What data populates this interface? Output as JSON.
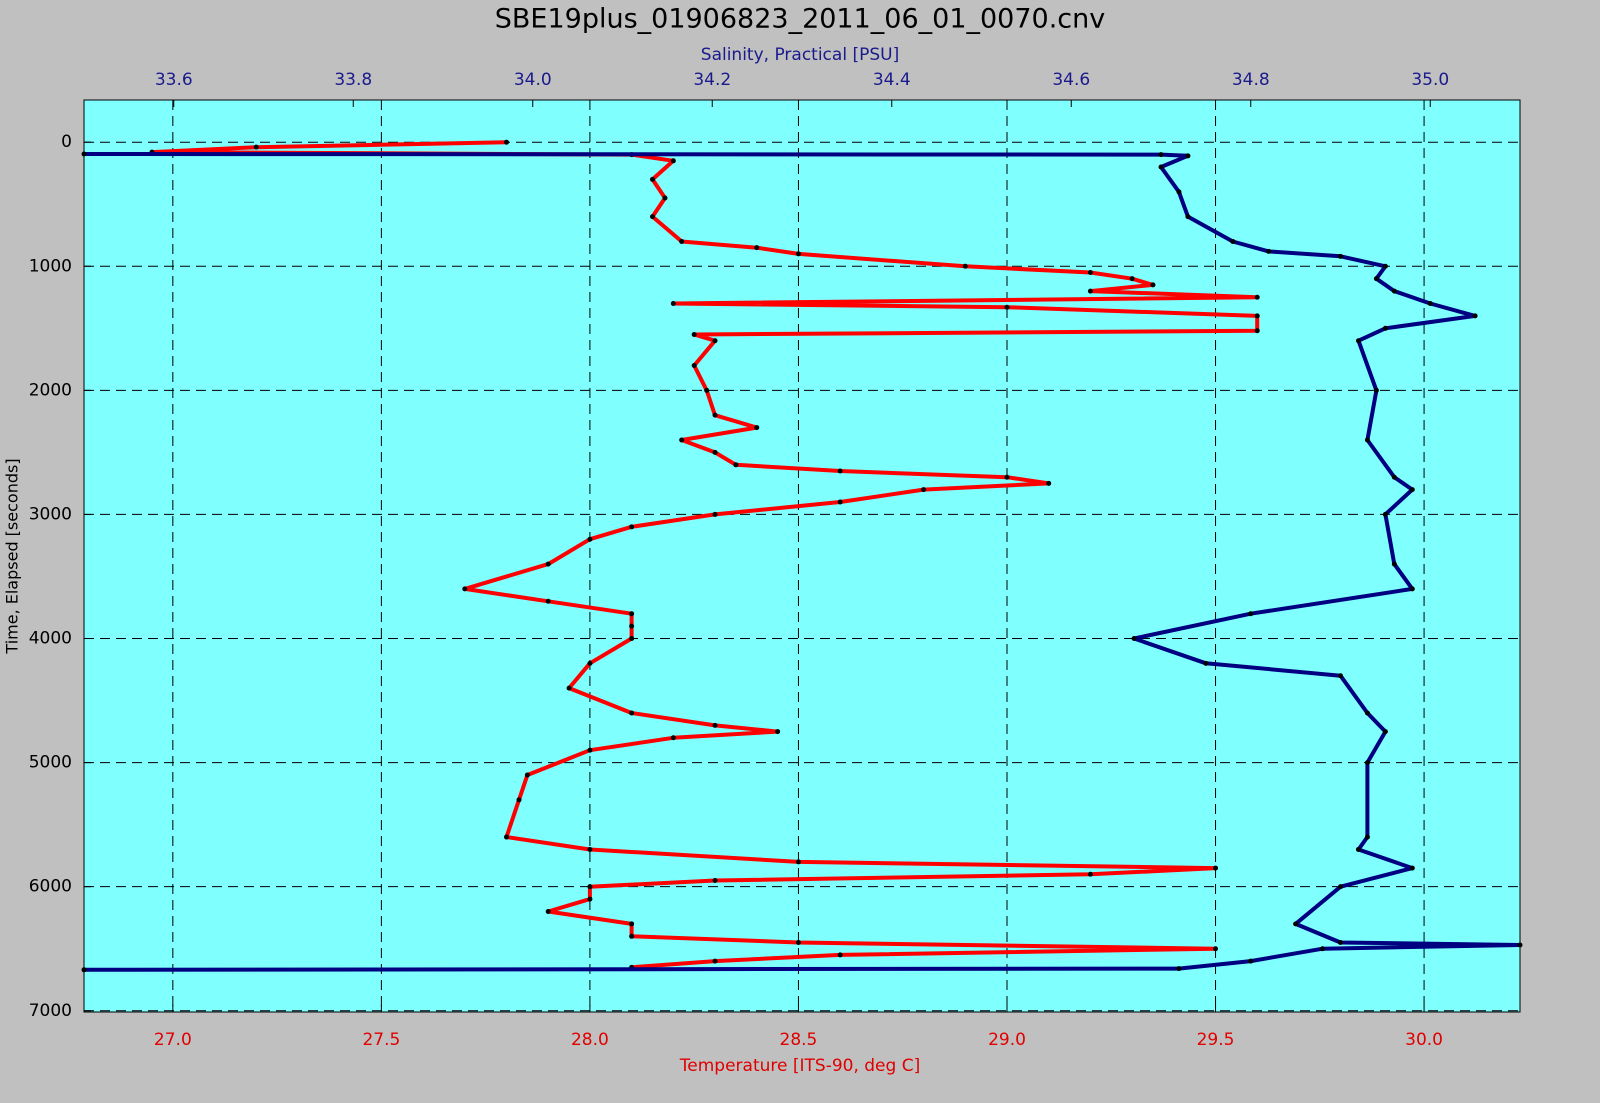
{
  "chart_data": {
    "type": "line",
    "title": "SBE19plus_01906823_2011_06_01_0070.cnv",
    "xlabel": "Temperature [ITS-90, deg C]",
    "x2label": "Salinity, Practical [PSU]",
    "ylabel": "Time, Elapsed [seconds]",
    "xlim": [
      26.787,
      30.23
    ],
    "xticks": [
      {
        "value": 27,
        "label": "27.0"
      },
      27.5,
      {
        "value": 28,
        "label": "28.0"
      },
      28.5,
      {
        "value": 29,
        "label": "29.0"
      },
      29.5,
      {
        "value": 30,
        "label": "30.0"
      }
    ],
    "x2lim": [
      33.5,
      35.1
    ],
    "x2ticks": [
      33.6,
      33.8,
      {
        "value": 34,
        "label": "34.0"
      },
      34.2,
      34.4,
      34.6,
      34.8,
      {
        "value": 35,
        "label": "35.0"
      }
    ],
    "ylim": [
      -340,
      7010
    ],
    "yticks": [
      0,
      1000,
      2000,
      3000,
      4000,
      5000,
      6000,
      7000
    ],
    "y_inverted": true,
    "grid": true,
    "series": [
      {
        "name": "Temperature [ITS-90, deg C]",
        "color": "#ff0000",
        "y": [
          0,
          40,
          80,
          100,
          150,
          300,
          450,
          600,
          800,
          850,
          900,
          1000,
          1050,
          1100,
          1150,
          1200,
          1250,
          1300,
          1330,
          1400,
          1520,
          1550,
          1600,
          1800,
          2000,
          2200,
          2300,
          2400,
          2500,
          2600,
          2650,
          2700,
          2750,
          2800,
          2900,
          3000,
          3100,
          3200,
          3400,
          3600,
          3700,
          3800,
          3900,
          4000,
          4200,
          4400,
          4600,
          4700,
          4750,
          4800,
          4900,
          5100,
          5300,
          5600,
          5700,
          5800,
          5850,
          5900,
          5950,
          6000,
          6100,
          6200,
          6300,
          6400,
          6450,
          6500,
          6550,
          6600,
          6650
        ],
        "values": [
          27.8,
          27.2,
          26.95,
          28.1,
          28.2,
          28.15,
          28.18,
          28.15,
          28.22,
          28.4,
          28.5,
          28.9,
          29.2,
          29.3,
          29.35,
          29.2,
          29.6,
          28.2,
          29.0,
          29.6,
          29.6,
          28.25,
          28.3,
          28.25,
          28.28,
          28.3,
          28.4,
          28.22,
          28.3,
          28.35,
          28.6,
          29.0,
          29.1,
          28.8,
          28.6,
          28.3,
          28.1,
          28.0,
          27.9,
          27.7,
          27.9,
          28.1,
          28.1,
          28.1,
          28.0,
          27.95,
          28.1,
          28.3,
          28.45,
          28.2,
          28.0,
          27.85,
          27.83,
          27.8,
          28.0,
          28.5,
          29.5,
          29.2,
          28.3,
          28.0,
          28.0,
          27.9,
          28.1,
          28.1,
          28.5,
          29.5,
          28.6,
          28.3,
          28.1
        ]
      },
      {
        "name": "Salinity, Practical [PSU]",
        "color": "#000080",
        "axis": "x2",
        "y": [
          95,
          100,
          110,
          200,
          400,
          600,
          800,
          880,
          920,
          1000,
          1100,
          1200,
          1300,
          1400,
          1500,
          1600,
          2000,
          2400,
          2700,
          2800,
          3000,
          3400,
          3600,
          3800,
          4000,
          4200,
          4300,
          4600,
          4750,
          5000,
          5600,
          5700,
          5850,
          6000,
          6300,
          6450,
          6470,
          6500,
          6600,
          6660,
          6670
        ],
        "values": [
          33.5,
          34.7,
          34.73,
          34.7,
          34.72,
          34.73,
          34.78,
          34.82,
          34.9,
          34.95,
          34.94,
          34.96,
          35.0,
          35.05,
          34.95,
          34.92,
          34.94,
          34.93,
          34.96,
          34.98,
          34.95,
          34.96,
          34.98,
          34.8,
          34.67,
          34.75,
          34.9,
          34.93,
          34.95,
          34.93,
          34.93,
          34.92,
          34.98,
          34.9,
          34.85,
          34.9,
          35.1,
          34.88,
          34.8,
          34.72,
          33.5
        ]
      }
    ]
  }
}
